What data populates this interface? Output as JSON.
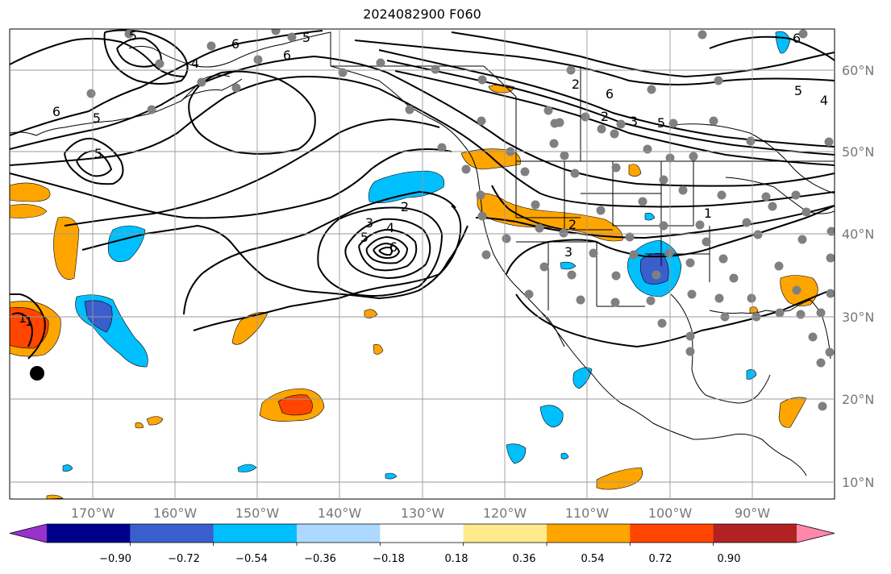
{
  "title": "2024082900 F060",
  "map": {
    "projection": "Mercator",
    "lon_range": [
      -180,
      -80
    ],
    "lat_range": [
      8,
      65
    ],
    "lon_ticks": [
      "170°W",
      "160°W",
      "150°W",
      "140°W",
      "130°W",
      "120°W",
      "110°W",
      "100°W",
      "90°W"
    ],
    "lat_ticks": [
      "60°N",
      "50°N",
      "40°N",
      "30°N",
      "20°N",
      "10°N"
    ],
    "grid": true,
    "colorbar": {
      "ticks": [
        "−0.90",
        "−0.72",
        "−0.54",
        "−0.36",
        "−0.18",
        "0.18",
        "0.36",
        "0.54",
        "0.72",
        "0.90"
      ],
      "colors": [
        "#9932cc",
        "#00008b",
        "#3a5fcd",
        "#00bfff",
        "#add8ff",
        "#ffffff",
        "#ffeb8c",
        "#ffa500",
        "#ff4500",
        "#b22222",
        "#ff88aa"
      ]
    },
    "contour_labels": [
      "5",
      "6",
      "4",
      "6",
      "5",
      "5",
      "5",
      "6",
      "2",
      "3",
      "4",
      "5",
      "6",
      "2",
      "6",
      "5",
      "4",
      "5",
      "3",
      "6",
      "2",
      "3",
      "1",
      "1",
      "2",
      "1"
    ]
  }
}
